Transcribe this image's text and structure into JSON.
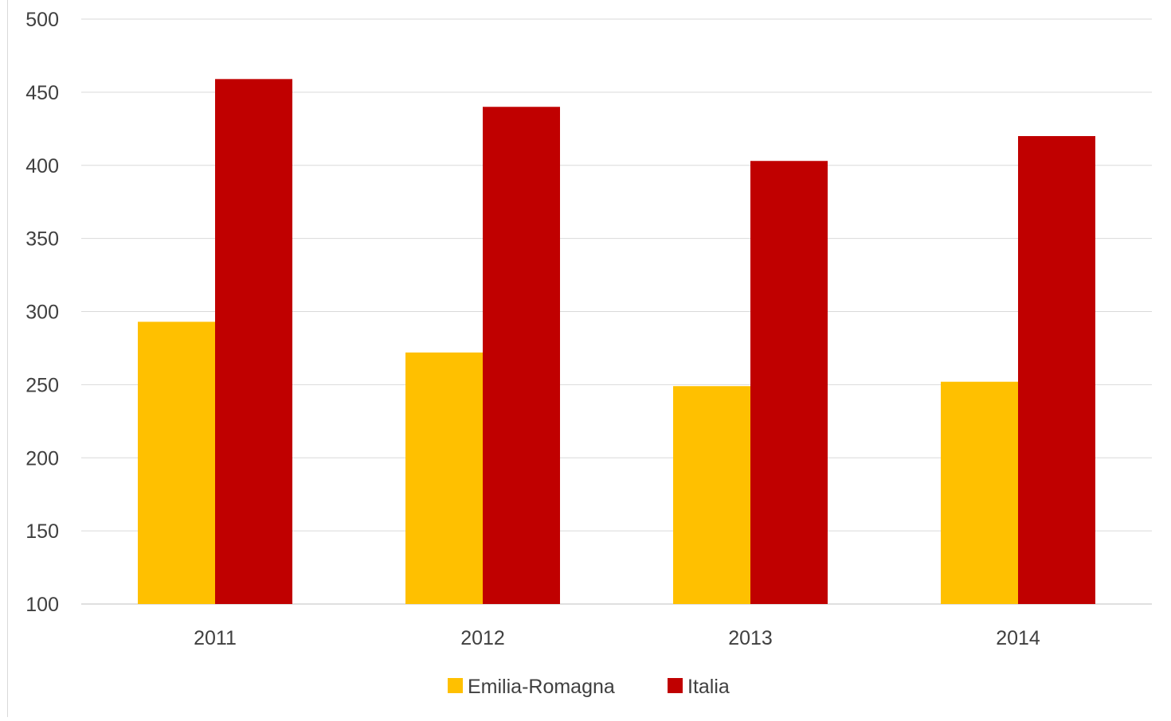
{
  "chart_data": {
    "type": "bar",
    "categories": [
      "2011",
      "2012",
      "2013",
      "2014"
    ],
    "series": [
      {
        "name": "Emilia-Romagna",
        "color": "#FFC000",
        "values": [
          293,
          272,
          249,
          252
        ]
      },
      {
        "name": "Italia",
        "color": "#C00000",
        "values": [
          459,
          440,
          403,
          420
        ]
      }
    ],
    "ylim": [
      100,
      500
    ],
    "yticks": [
      "100",
      "150",
      "200",
      "250",
      "300",
      "350",
      "400",
      "450",
      "500"
    ],
    "grid": true,
    "legend_position": "bottom"
  }
}
